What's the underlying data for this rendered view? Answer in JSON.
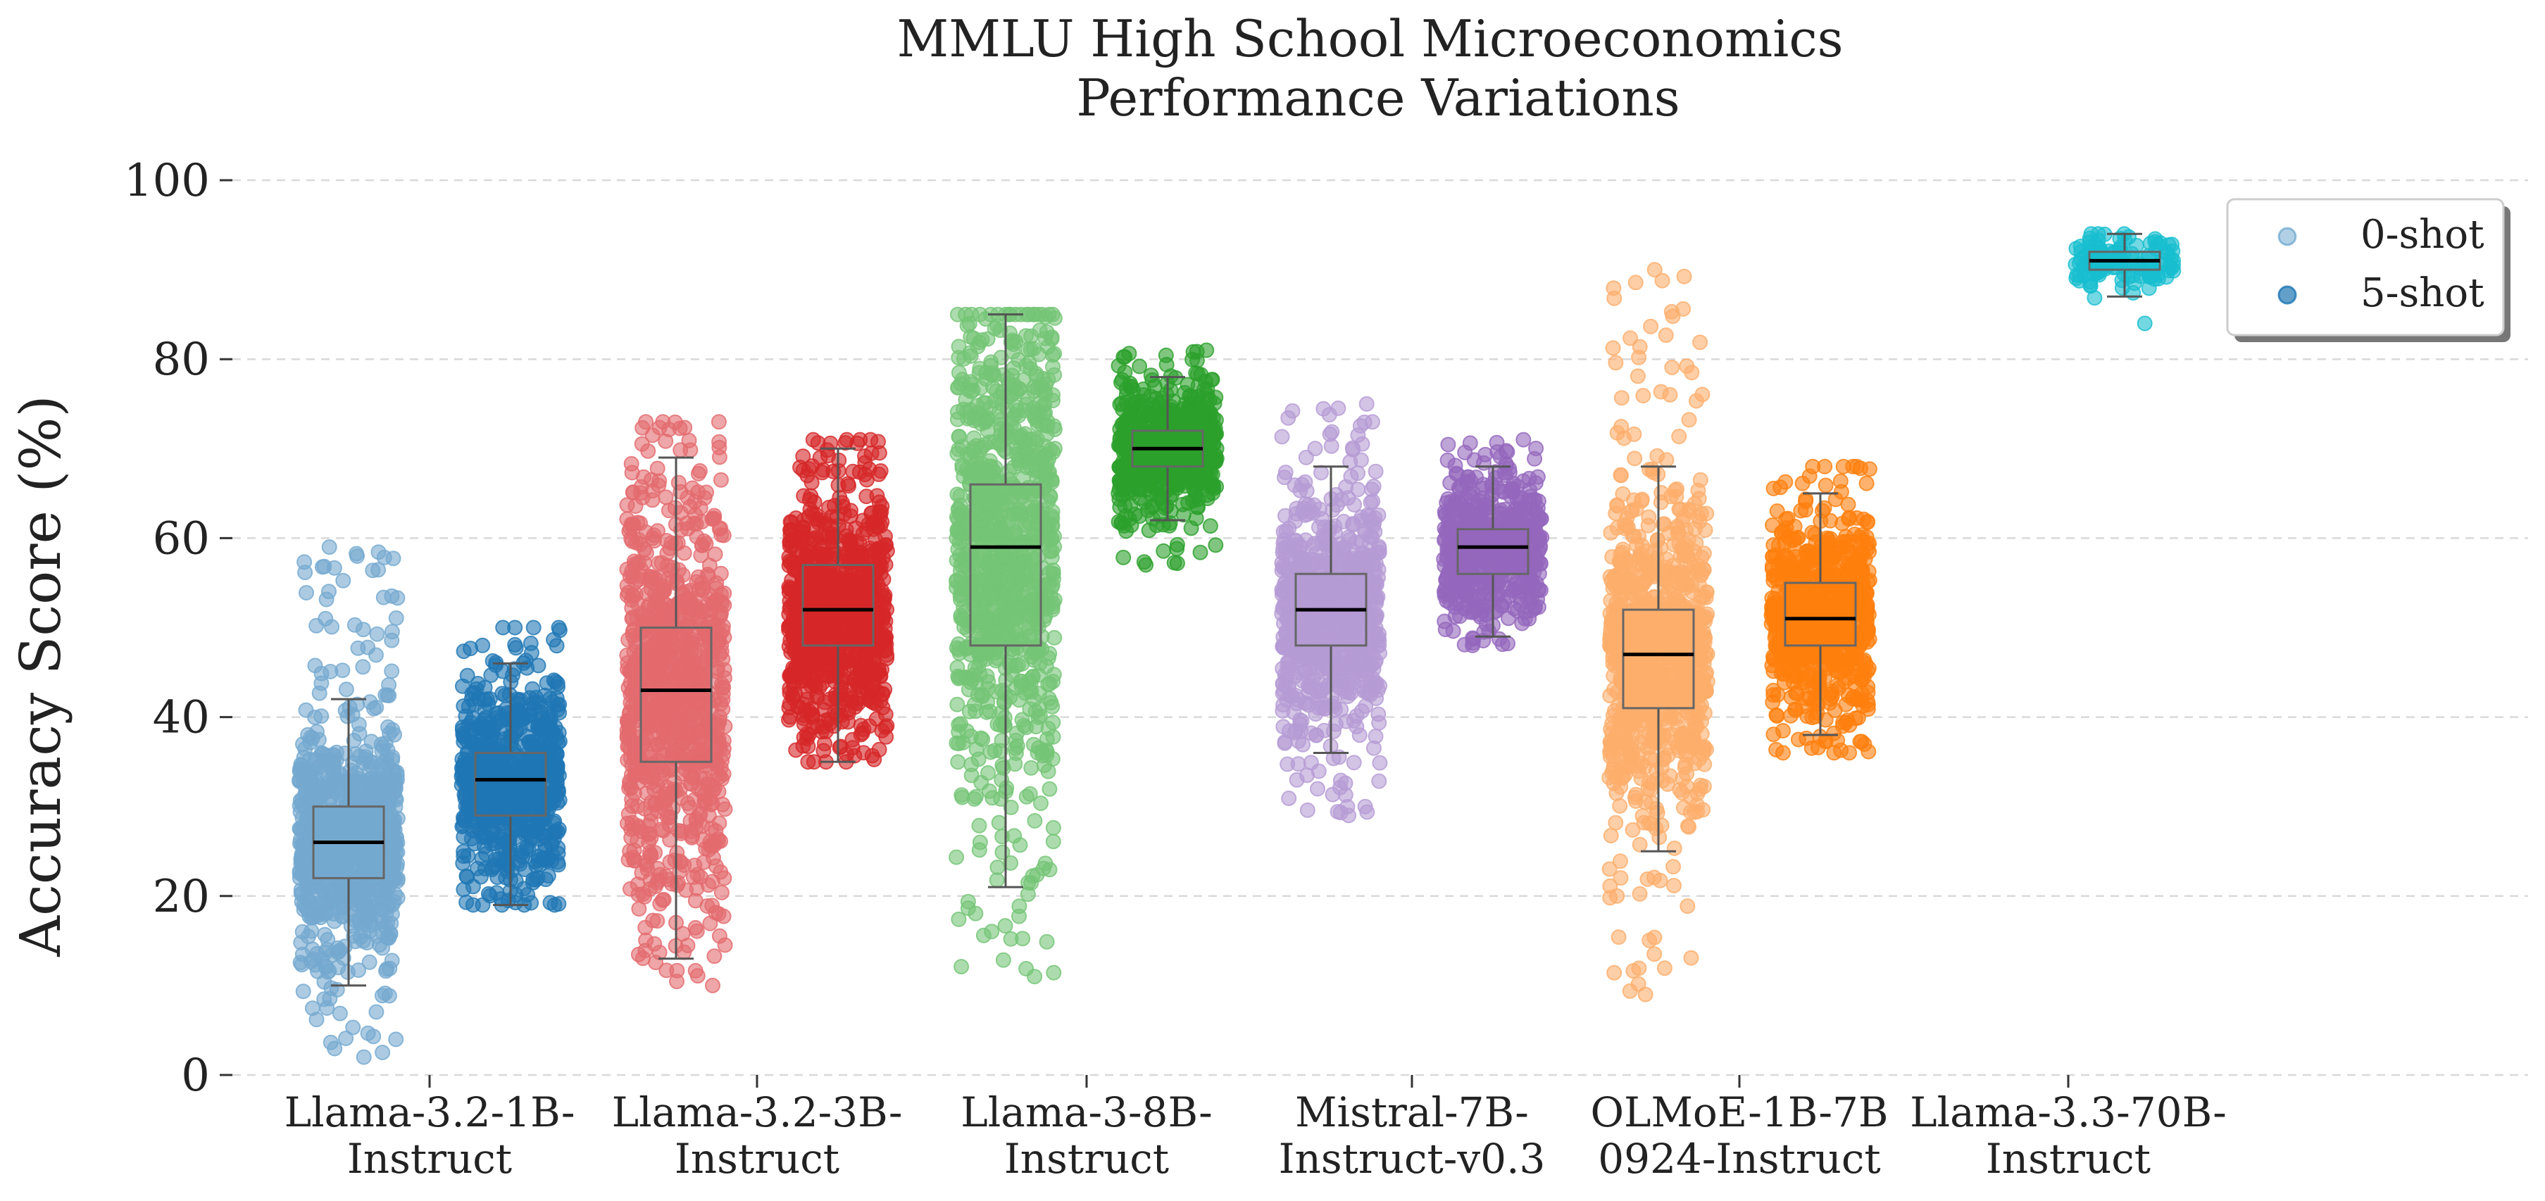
{
  "chart_data": {
    "type": "box",
    "title": "MMLU High School Microeconomics\nPerformance Variations",
    "xlabel": "",
    "ylabel": "Accuracy Score (%)",
    "ylim": [
      0,
      100
    ],
    "yticks": [
      0,
      20,
      40,
      60,
      80,
      100
    ],
    "grid": "horizontal dashed",
    "legend": {
      "position": "top-right",
      "entries": [
        "0-shot",
        "5-shot"
      ]
    },
    "categories": [
      "Llama-3.2-1B-\nInstruct",
      "Llama-3.2-3B-\nInstruct",
      "Llama-3-8B-\nInstruct",
      "Mistral-7B-\nInstruct-v0.3",
      "OLMoE-1B-7B\n0924-Instruct",
      "Llama-3.3-70B-\nInstruct"
    ],
    "series": [
      {
        "name": "0-shot",
        "boxes": [
          {
            "category": "Llama-3.2-1B-Instruct",
            "color": "#74a9cf",
            "min": 10,
            "q1": 22,
            "median": 26,
            "q3": 30,
            "max": 42,
            "data_min": 2,
            "data_max": 59,
            "n": 900
          },
          {
            "category": "Llama-3.2-3B-Instruct",
            "color": "#e36a6e",
            "min": 13,
            "q1": 35,
            "median": 43,
            "q3": 50,
            "max": 69,
            "data_min": 10,
            "data_max": 73,
            "n": 900
          },
          {
            "category": "Llama-3-8B-Instruct",
            "color": "#74c476",
            "min": 21,
            "q1": 48,
            "median": 59,
            "q3": 66,
            "max": 85,
            "data_min": 11,
            "data_max": 85,
            "n": 900
          },
          {
            "category": "Mistral-7B-Instruct-v0.3",
            "color": "#b59bd4",
            "min": 36,
            "q1": 48,
            "median": 52,
            "q3": 56,
            "max": 68,
            "data_min": 29,
            "data_max": 75,
            "n": 800
          },
          {
            "category": "OLMoE-1B-7B-0924-Instruct",
            "color": "#fdae6b",
            "min": 25,
            "q1": 41,
            "median": 47,
            "q3": 52,
            "max": 68,
            "data_min": 9,
            "data_max": 90,
            "n": 900
          }
        ]
      },
      {
        "name": "5-shot",
        "boxes": [
          {
            "category": "Llama-3.2-1B-Instruct",
            "color": "#1f77b4",
            "min": 19,
            "q1": 29,
            "median": 33,
            "q3": 36,
            "max": 46,
            "data_min": 19,
            "data_max": 50,
            "n": 700
          },
          {
            "category": "Llama-3.2-3B-Instruct",
            "color": "#d62728",
            "min": 35,
            "q1": 48,
            "median": 52,
            "q3": 57,
            "max": 70,
            "data_min": 35,
            "data_max": 71,
            "n": 800
          },
          {
            "category": "Llama-3-8B-Instruct",
            "color": "#2ca02c",
            "min": 62,
            "q1": 68,
            "median": 70,
            "q3": 72,
            "max": 78,
            "data_min": 57,
            "data_max": 81,
            "n": 700
          },
          {
            "category": "Mistral-7B-Instruct-v0.3",
            "color": "#9467bd",
            "min": 49,
            "q1": 56,
            "median": 59,
            "q3": 61,
            "max": 68,
            "data_min": 48,
            "data_max": 71,
            "n": 600
          },
          {
            "category": "OLMoE-1B-7B-0924-Instruct",
            "color": "#ff7f0e",
            "min": 38,
            "q1": 48,
            "median": 51,
            "q3": 55,
            "max": 65,
            "data_min": 36,
            "data_max": 68,
            "n": 700
          },
          {
            "category": "Llama-3.3-70B-Instruct",
            "color": "#17becf",
            "min": 87,
            "q1": 90,
            "median": 91,
            "q3": 92,
            "max": 94,
            "data_min": 84,
            "data_max": 94,
            "n": 120
          }
        ]
      }
    ]
  }
}
